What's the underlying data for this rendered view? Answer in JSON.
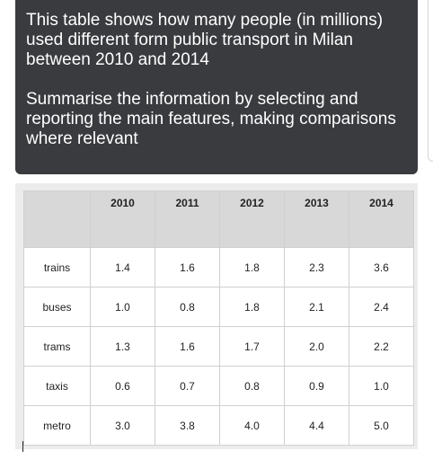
{
  "prompt": {
    "description": "This table shows how many people (in millions) used different form public transport in Milan between 2010 and 2014",
    "task": "Summarise the information by selecting and reporting the main features, making comparisons where relevant"
  },
  "table": {
    "corner": "",
    "columns": [
      "2010",
      "2011",
      "2012",
      "2013",
      "2014"
    ],
    "rows": [
      {
        "label": "trains",
        "values": [
          "1.4",
          "1.6",
          "1.8",
          "2.3",
          "3.6"
        ]
      },
      {
        "label": "buses",
        "values": [
          "1.0",
          "0.8",
          "1.8",
          "2.1",
          "2.4"
        ]
      },
      {
        "label": "trams",
        "values": [
          "1.3",
          "1.6",
          "1.7",
          "2.0",
          "2.2"
        ]
      },
      {
        "label": "taxis",
        "values": [
          "0.6",
          "0.7",
          "0.8",
          "0.9",
          "1.0"
        ]
      },
      {
        "label": "metro",
        "values": [
          "3.0",
          "3.8",
          "4.0",
          "4.4",
          "5.0"
        ]
      }
    ]
  },
  "chart_data": {
    "type": "table",
    "categories": [
      "2010",
      "2011",
      "2012",
      "2013",
      "2014"
    ],
    "series": [
      {
        "name": "trains",
        "values": [
          1.4,
          1.6,
          1.8,
          2.3,
          3.6
        ]
      },
      {
        "name": "buses",
        "values": [
          1.0,
          0.8,
          1.8,
          2.1,
          2.4
        ]
      },
      {
        "name": "trams",
        "values": [
          1.3,
          1.6,
          1.7,
          2.0,
          2.2
        ]
      },
      {
        "name": "taxis",
        "values": [
          0.6,
          0.7,
          0.8,
          0.9,
          1.0
        ]
      },
      {
        "name": "metro",
        "values": [
          3.0,
          3.8,
          4.0,
          4.4,
          5.0
        ]
      }
    ]
  }
}
